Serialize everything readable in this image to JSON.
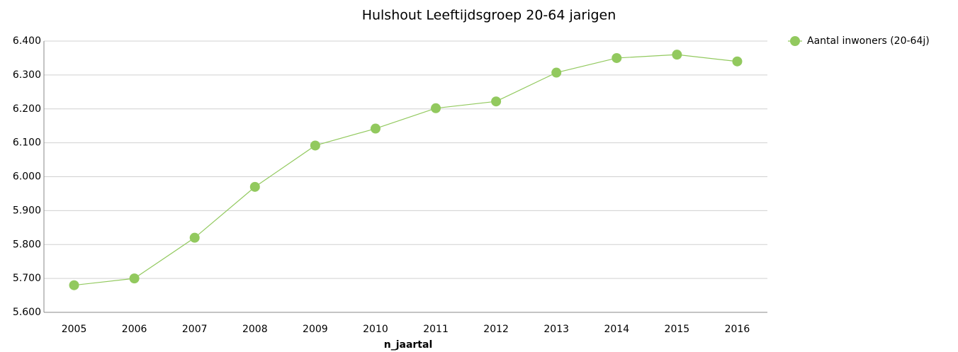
{
  "chart_data": {
    "type": "line",
    "title": "Hulshout  Leeftijdsgroep 20-64 jarigen",
    "x_label": "n_jaartal",
    "categories": [
      "2005",
      "2006",
      "2007",
      "2008",
      "2009",
      "2010",
      "2011",
      "2012",
      "2013",
      "2014",
      "2015",
      "2016"
    ],
    "series": [
      {
        "name": "Aantal inwoners  (20-64j)",
        "color": "#92c95e",
        "values": [
          5680,
          5700,
          5820,
          5970,
          6092,
          6142,
          6202,
          6222,
          6307,
          6350,
          6360,
          6340
        ]
      }
    ],
    "ylim": [
      5600,
      6400
    ],
    "yticks": [
      {
        "value": 5600,
        "label": "5.600"
      },
      {
        "value": 5700,
        "label": "5.700"
      },
      {
        "value": 5800,
        "label": "5.800"
      },
      {
        "value": 5900,
        "label": "5.900"
      },
      {
        "value": 6000,
        "label": "6.000"
      },
      {
        "value": 6100,
        "label": "6.100"
      },
      {
        "value": 6200,
        "label": "6.200"
      },
      {
        "value": 6300,
        "label": "6.300"
      },
      {
        "value": 6400,
        "label": "6.400"
      }
    ],
    "grid": true,
    "legend": "right"
  }
}
